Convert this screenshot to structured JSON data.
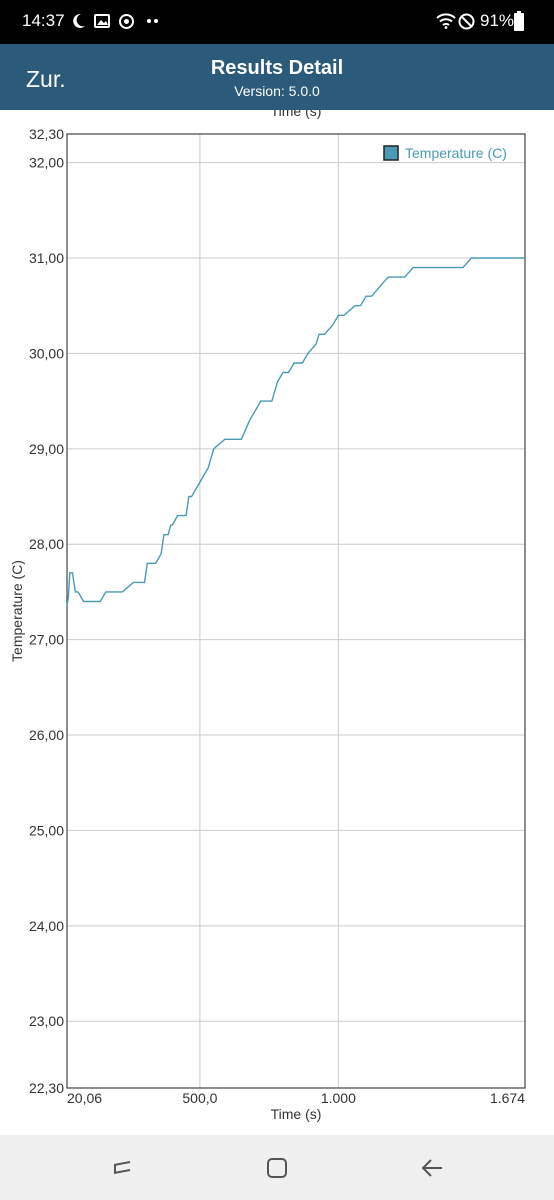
{
  "status_bar": {
    "time": "14:37",
    "battery": "91%",
    "icons_left": [
      "moon-icon",
      "image-icon",
      "sync-icon",
      "more-dots-icon"
    ],
    "icons_right": [
      "wifi-icon",
      "do-not-disturb-icon",
      "battery-icon"
    ]
  },
  "header": {
    "back_label": "Zur.",
    "title": "Results Detail",
    "subtitle": "Version: 5.0.0",
    "background_color": "#2c5a7a"
  },
  "nav_bar": {
    "icons": [
      "recent-apps-icon",
      "home-icon",
      "back-arrow-icon"
    ]
  },
  "chart_data": {
    "type": "line",
    "xlabel": "Time (s)",
    "ylabel": "Temperature (C)",
    "legend": {
      "label": "Temperature (C)",
      "position": "top-right"
    },
    "grid": true,
    "line_color": "#4a9ab5",
    "xlim": [
      20.06,
      1674
    ],
    "ylim": [
      22.3,
      32.3
    ],
    "x_ticks": [
      {
        "value": 20.06,
        "label": "20,06"
      },
      {
        "value": 500,
        "label": "500,0"
      },
      {
        "value": 1000,
        "label": "1.000"
      },
      {
        "value": 1674,
        "label": "1.674"
      }
    ],
    "y_ticks": [
      {
        "value": 22.3,
        "label": "22,30"
      },
      {
        "value": 23,
        "label": "23,00"
      },
      {
        "value": 24,
        "label": "24,00"
      },
      {
        "value": 25,
        "label": "25,00"
      },
      {
        "value": 26,
        "label": "26,00"
      },
      {
        "value": 27,
        "label": "27,00"
      },
      {
        "value": 28,
        "label": "28,00"
      },
      {
        "value": 29,
        "label": "29,00"
      },
      {
        "value": 30,
        "label": "30,00"
      },
      {
        "value": 31,
        "label": "31,00"
      },
      {
        "value": 32,
        "label": "32,00"
      },
      {
        "value": 32.3,
        "label": "32,30"
      }
    ],
    "x": [
      20,
      25,
      30,
      40,
      50,
      60,
      80,
      100,
      140,
      160,
      210,
      220,
      260,
      265,
      300,
      310,
      330,
      340,
      360,
      370,
      380,
      385,
      395,
      400,
      420,
      440,
      450,
      460,
      470,
      490,
      510,
      530,
      550,
      590,
      620,
      650,
      680,
      700,
      720,
      760,
      780,
      800,
      820,
      840,
      860,
      870,
      890,
      920,
      930,
      950,
      980,
      1000,
      1020,
      1060,
      1080,
      1100,
      1120,
      1150,
      1180,
      1240,
      1270,
      1300,
      1330,
      1370,
      1400,
      1450,
      1480,
      1550,
      1630,
      1660,
      1674
    ],
    "y": [
      27.35,
      27.45,
      27.7,
      27.7,
      27.5,
      27.5,
      27.4,
      27.4,
      27.4,
      27.5,
      27.5,
      27.5,
      27.6,
      27.6,
      27.6,
      27.8,
      27.8,
      27.8,
      27.9,
      28.1,
      28.1,
      28.1,
      28.2,
      28.2,
      28.3,
      28.3,
      28.3,
      28.5,
      28.5,
      28.6,
      28.7,
      28.8,
      29.0,
      29.1,
      29.1,
      29.1,
      29.3,
      29.4,
      29.5,
      29.5,
      29.7,
      29.8,
      29.8,
      29.9,
      29.9,
      29.9,
      30.0,
      30.1,
      30.2,
      30.2,
      30.3,
      30.4,
      30.4,
      30.5,
      30.5,
      30.6,
      30.6,
      30.7,
      30.8,
      30.8,
      30.9,
      30.9,
      30.9,
      30.9,
      30.9,
      30.9,
      31.0,
      31.0,
      31.0,
      31.0,
      31.0
    ]
  }
}
